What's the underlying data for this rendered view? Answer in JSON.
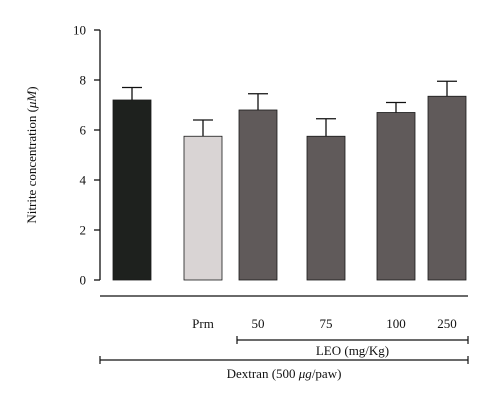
{
  "chart_data": {
    "type": "bar",
    "categories": [
      "",
      "Prm",
      "50",
      "75",
      "100",
      "250"
    ],
    "values": [
      7.2,
      5.75,
      6.8,
      5.75,
      6.7,
      7.35
    ],
    "errors": [
      0.5,
      0.65,
      0.65,
      0.7,
      0.4,
      0.6
    ],
    "bar_colors": [
      "#1e211e",
      "#d9d4d4",
      "#605a5a",
      "#605a5a",
      "#605a5a",
      "#605a5a"
    ],
    "ylabel_prefix": "Nitrite concentration (",
    "ylabel_unit": "μM",
    "ylabel_suffix": ")",
    "ylim": [
      0,
      10
    ],
    "yticks": [
      "0",
      "2",
      "4",
      "6",
      "8",
      "10"
    ],
    "groups": [
      {
        "label": "LEO (mg/Kg)",
        "from": 2,
        "to": 5
      },
      {
        "label_prefix": "Dextran (500 ",
        "label_unit": "μg",
        "label_suffix": "/paw)",
        "from": 0,
        "to": 5
      }
    ],
    "grid": false,
    "legend": "none"
  }
}
